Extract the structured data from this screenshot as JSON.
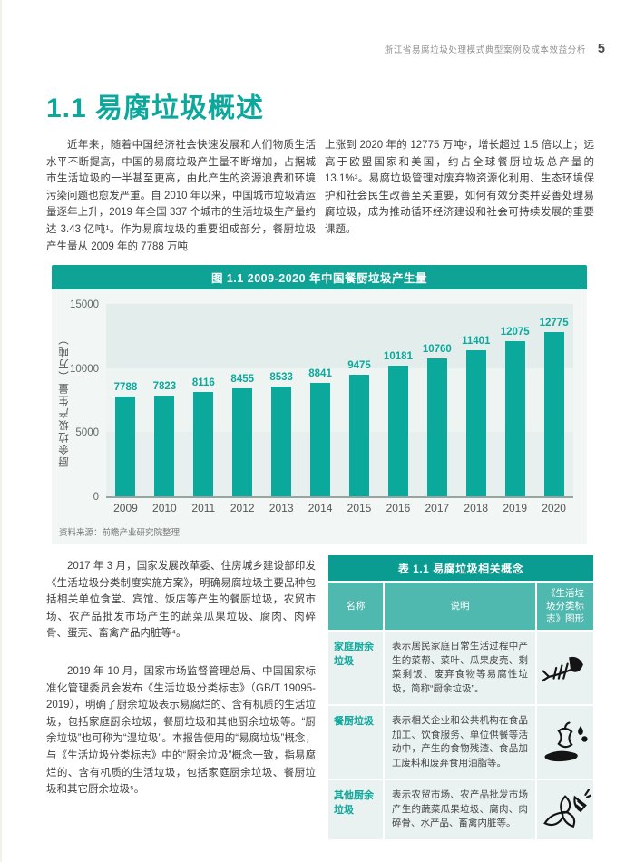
{
  "page": {
    "header_title": "浙江省易腐垃圾处理模式典型案例及成本效益分析",
    "page_number": "5"
  },
  "section": {
    "title": "1.1 易腐垃圾概述"
  },
  "intro": {
    "col_left": "近年来，随着中国经济社会快速发展和人们物质生活水平不断提高，中国的易腐垃圾产生量不断增加，占据城市生活垃圾的一半甚至更高，由此产生的资源浪费和环境污染问题也愈发严重。自 2010 年以来，中国城市垃圾清运量逐年上升，2019 年全国 337 个城市的生活垃圾生产量约达 3.43 亿吨¹。作为易腐垃圾的重要组成部分，餐厨垃圾产生量从 2009 年的 7788 万吨",
    "col_right": "上涨到 2020 年的 12775 万吨²，增长超过 1.5 倍以上；远高于欧盟国家和美国，约占全球餐厨垃圾总产量的 13.1%³。易腐垃圾管理对废弃物资源化利用、生态环境保护和社会民生改善至关重要，如何有效分类并妥善处理易腐垃圾，成为推动循环经济建设和社会可持续发展的重要课题。"
  },
  "chart": {
    "title": "图 1.1 2009-2020 年中国餐厨垃圾产生量",
    "source": "资料来源：前瞻产业研究院整理"
  },
  "chart_data": {
    "type": "bar",
    "title": "图 1.1 2009-2020 年中国餐厨垃圾产生量",
    "categories": [
      "2009",
      "2010",
      "2011",
      "2012",
      "2013",
      "2014",
      "2015",
      "2016",
      "2017",
      "2018",
      "2019",
      "2020"
    ],
    "values": [
      7788,
      7823,
      8116,
      8455,
      8533,
      8841,
      9475,
      10181,
      10760,
      11401,
      12075,
      12775
    ],
    "xlabel": "",
    "ylabel": "厨余垃圾产生量（万吨）",
    "yticks": [
      0,
      5000,
      10000,
      15000
    ],
    "ylim": [
      0,
      15000
    ],
    "grid": "banded",
    "legend": "none",
    "source": "资料来源：前瞻产业研究院整理"
  },
  "paragraphs": {
    "p2": "2017 年 3 月，国家发展改革委、住房城乡建设部印发《生活垃圾分类制度实施方案》，明确易腐垃圾主要品种包括相关单位食堂、宾馆、饭店等产生的餐厨垃圾，农贸市场、农产品批发市场产生的蔬菜瓜果垃圾、腐肉、肉碎骨、蛋壳、畜禽产品内脏等⁴。",
    "p3": "2019 年 10 月，国家市场监督管理总局、中国国家标准化管理委员会发布《生活垃圾分类标志》（GB/T 19095-2019），明确了厨余垃圾表示易腐烂的、含有机质的生活垃圾，包括家庭厨余垃圾，餐厨垃圾和其他厨余垃圾等。“厨余垃圾”也可称为“湿垃圾”。本报告使用的“易腐垃圾”概念，与《生活垃圾分类标志》中的“厨余垃圾”概念一致，指易腐烂的、含有机质的生活垃圾，包括家庭厨余垃圾、餐厨垃圾和其它厨余垃圾⁵。"
  },
  "table": {
    "title": "表 1.1 易腐垃圾相关概念",
    "headers": [
      "名称",
      "说明",
      "《生活垃圾分类标志》图形"
    ],
    "rows": [
      {
        "name": "家庭厨余垃圾",
        "desc": "表示居民家庭日常生活过程中产生的菜帮、菜叶、瓜果皮壳、剩菜剩饭、废弃食物等易腐性垃圾，简称“厨余垃圾”。",
        "icon": "fish-bone"
      },
      {
        "name": "餐厨垃圾",
        "desc": "表示相关企业和公共机构在食品加工、饮食服务、单位供餐等活动中，产生的食物残渣、食品加工废料和废弃食用油脂等。",
        "icon": "food-scraps"
      },
      {
        "name": "其他厨余垃圾",
        "desc": "表示农贸市场、农产品批发市场产生的蔬菜瓜果垃圾、腐肉、肉碎骨、水产品、畜禽内脏等。",
        "icon": "banana-peel"
      }
    ]
  },
  "colors": {
    "teal": "#0ca89b",
    "chart_title_bg": "#0fa396",
    "chart_panel_bg": "#f2f6f5",
    "bar_color": "#0ba99b",
    "band_low": "#e7f0ee",
    "band_mid": "#eef4f2",
    "band_high": "#e3edeb",
    "table_title_bg": "#0a9c90",
    "table_header_bg": "#4fb8af",
    "table_row_bg": "#e9f2f0"
  }
}
